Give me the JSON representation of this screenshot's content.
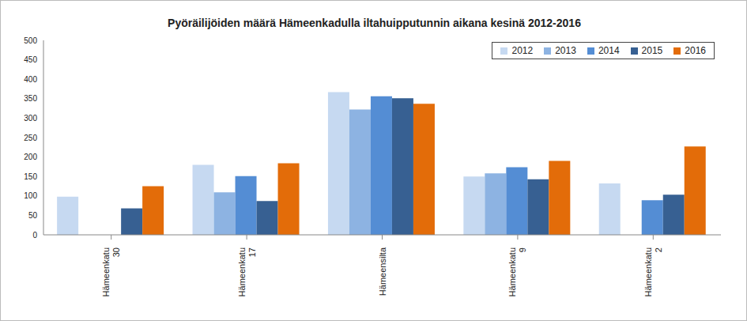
{
  "chart_data": {
    "type": "bar",
    "title": "Pyöräilijöiden määrä Hämeenkadulla iltahuipputunnin aikana kesinä 2012-2016",
    "categories": [
      "Hämeenkatu 30",
      "Hämeenkatu 17",
      "Hämeensilta",
      "Hämeenkatu 9",
      "Hämeenkatu 2"
    ],
    "series": [
      {
        "name": "2012",
        "color": "#c6d9f1",
        "values": [
          98,
          180,
          367,
          150,
          132
        ]
      },
      {
        "name": "2013",
        "color": "#8db3e2",
        "values": [
          null,
          109,
          322,
          158,
          null
        ]
      },
      {
        "name": "2014",
        "color": "#548dd4",
        "values": [
          null,
          151,
          356,
          174,
          89
        ]
      },
      {
        "name": "2015",
        "color": "#376092",
        "values": [
          68,
          87,
          351,
          143,
          103
        ]
      },
      {
        "name": "2016",
        "color": "#e36c09",
        "values": [
          125,
          184,
          337,
          190,
          227
        ]
      }
    ],
    "ylim": [
      0,
      500
    ],
    "yticks": [
      0,
      50,
      100,
      150,
      200,
      250,
      300,
      350,
      400,
      450,
      500
    ],
    "grid": false,
    "legend": "upper right"
  }
}
